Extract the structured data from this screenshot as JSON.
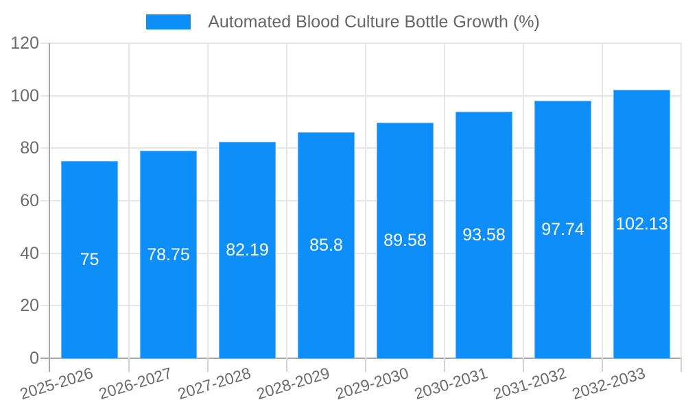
{
  "legend": {
    "label": "Automated Blood Culture Bottle Growth (%)"
  },
  "chart_data": {
    "type": "bar",
    "title": "Automated Blood Culture Bottle Growth (%)",
    "categories": [
      "2025-2026",
      "2026-2027",
      "2027-2028",
      "2028-2029",
      "2029-2030",
      "2030-2031",
      "2031-2032",
      "2032-2033"
    ],
    "values": [
      75,
      78.75,
      82.19,
      85.8,
      89.58,
      93.58,
      97.74,
      102.13
    ],
    "bar_labels": [
      "75",
      "78.75",
      "82.19",
      "85.8",
      "89.58",
      "93.58",
      "97.74",
      "102.13"
    ],
    "xlabel": "",
    "ylabel": "",
    "ylim": [
      0,
      120
    ],
    "yticks": [
      0,
      20,
      40,
      60,
      80,
      100,
      120
    ],
    "grid": true,
    "legend_position": "top-center",
    "colors": {
      "bar": "#0d8ef9",
      "grid": "#e6e6e6",
      "axis": "#a6a6a6",
      "tick_text": "#6b6b6b",
      "bar_label_text": "#ffffff",
      "legend_text": "#666666"
    }
  }
}
